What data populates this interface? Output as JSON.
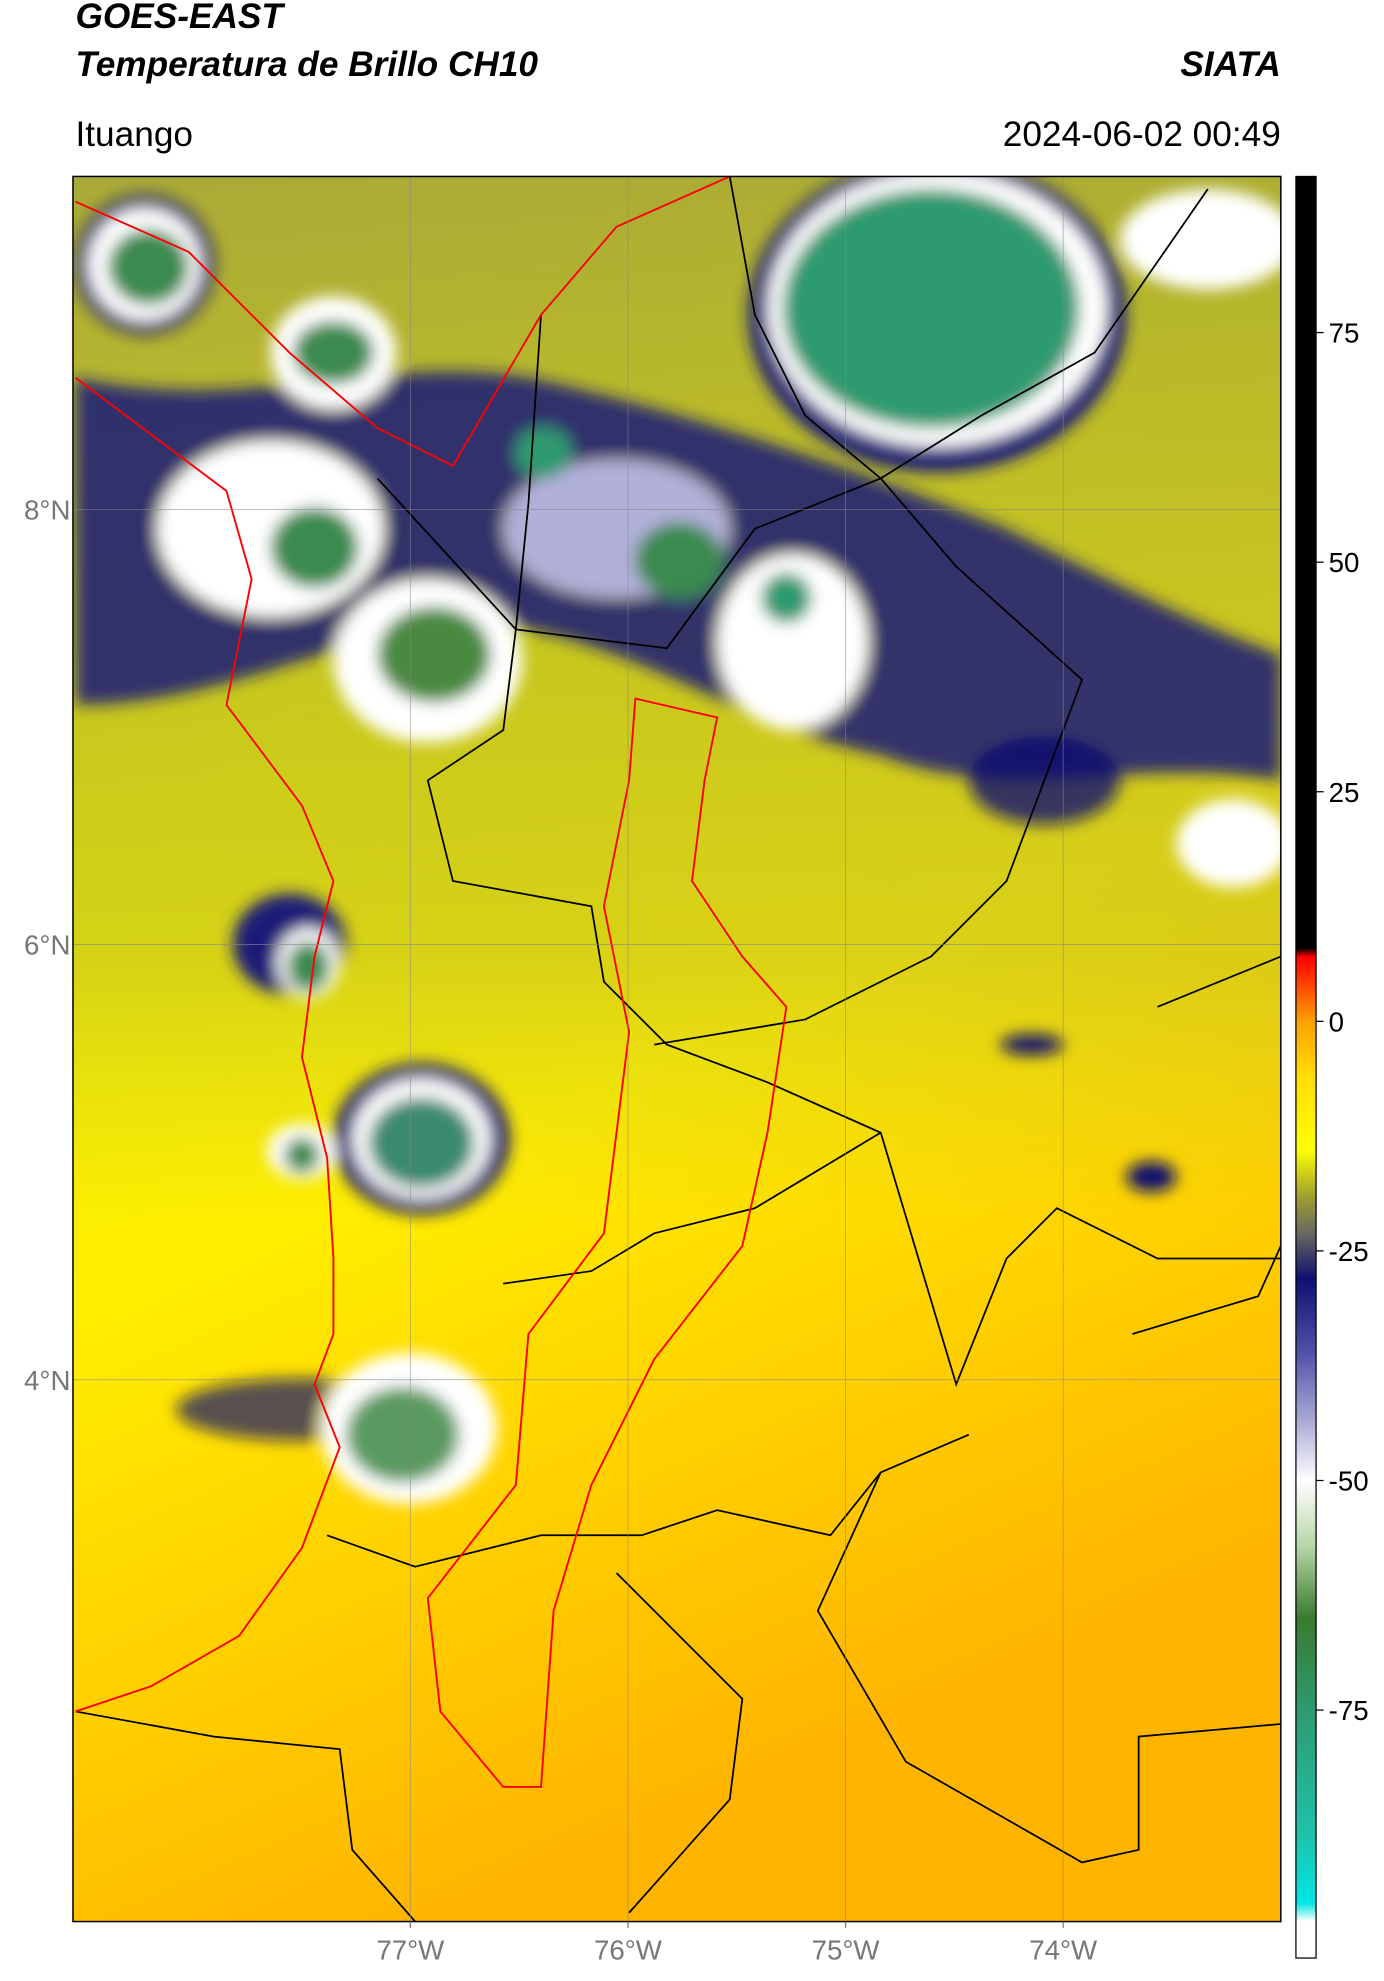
{
  "header": {
    "title": "GOES-EAST",
    "subtitle": "Temperatura de Brillo CH10",
    "source": "SIATA",
    "location": "Ituango",
    "datetime": "2024-06-02 00:49"
  },
  "map": {
    "xlim": [
      -78.55,
      -73.0
    ],
    "ylim": [
      1.51,
      9.53
    ],
    "xticks": [
      {
        "value": -77,
        "label": "77°W"
      },
      {
        "value": -76,
        "label": "76°W"
      },
      {
        "value": -75,
        "label": "75°W"
      },
      {
        "value": -74,
        "label": "74°W"
      }
    ],
    "yticks": [
      {
        "value": 4,
        "label": "4°N"
      },
      {
        "value": 6,
        "label": "6°N"
      },
      {
        "value": 8,
        "label": "8°N"
      }
    ],
    "grid": true
  },
  "colorbar": {
    "lim": [
      -102,
      92
    ],
    "ticks": [
      -75,
      -50,
      -25,
      0,
      25,
      50,
      75
    ],
    "colormap": [
      {
        "value": -102,
        "color": "#ffffff"
      },
      {
        "value": -98,
        "color": "#ffffff"
      },
      {
        "value": -96,
        "color": "#00e5e5"
      },
      {
        "value": -88,
        "color": "#20c0a8"
      },
      {
        "value": -75,
        "color": "#2e9a70"
      },
      {
        "value": -65,
        "color": "#3a7a30"
      },
      {
        "value": -57,
        "color": "#b8d8a8"
      },
      {
        "value": -50,
        "color": "#ffffff"
      },
      {
        "value": -44,
        "color": "#b0b0d8"
      },
      {
        "value": -36,
        "color": "#5050a8"
      },
      {
        "value": -28,
        "color": "#101070"
      },
      {
        "value": -23,
        "color": "#6a6a60"
      },
      {
        "value": -19,
        "color": "#a0a030"
      },
      {
        "value": -14,
        "color": "#ffff00"
      },
      {
        "value": -6,
        "color": "#ffdd00"
      },
      {
        "value": 0,
        "color": "#ffa000"
      },
      {
        "value": 7,
        "color": "#ff0000"
      },
      {
        "value": 8,
        "color": "#000000"
      },
      {
        "value": 92,
        "color": "#000000"
      }
    ]
  }
}
